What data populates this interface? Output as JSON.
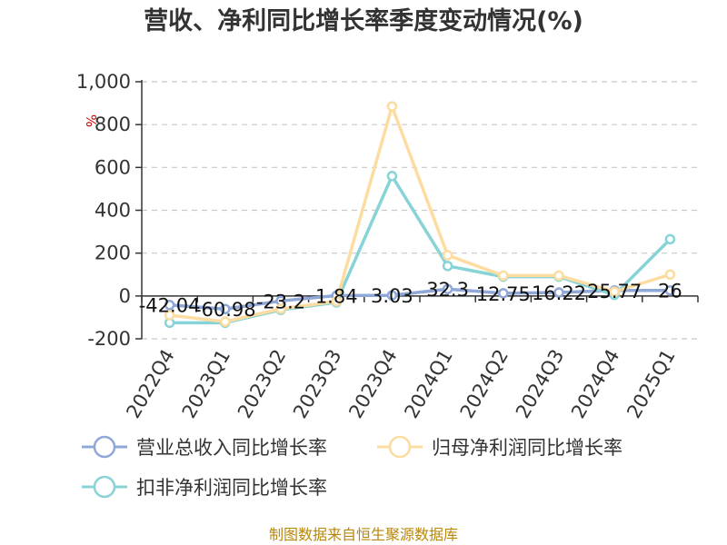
{
  "chart_data": {
    "type": "line",
    "title": "营收、净利同比增长率季度变动情况(%)",
    "ylabel": "%",
    "categories": [
      "2022Q4",
      "2023Q1",
      "2023Q2",
      "2023Q3",
      "2023Q4",
      "2024Q1",
      "2024Q2",
      "2024Q3",
      "2024Q4",
      "2025Q1"
    ],
    "ylim": [
      -200,
      1000
    ],
    "yticks": [
      -200,
      0,
      200,
      400,
      600,
      800,
      1000
    ],
    "ytick_labels": [
      "-200",
      "0",
      "200",
      "400",
      "600",
      "800",
      "1,000"
    ],
    "grid": true,
    "legend_position": "bottom",
    "series": [
      {
        "name": "营业总收入同比增长率",
        "color": "#8fa8d8",
        "values": [
          -42.04,
          -60.98,
          -23.2,
          1.84,
          3.03,
          32.3,
          12.75,
          16.22,
          25.77,
          26
        ],
        "labels": [
          "-42.04",
          "-60.98",
          "-23.2",
          "1.84",
          "3.03",
          "32.3",
          "12.75",
          "16.22",
          "25.77",
          "26"
        ]
      },
      {
        "name": "归母净利润同比增长率",
        "color": "#fcdca0",
        "values": [
          -90,
          -120,
          -60,
          -25,
          885,
          190,
          95,
          95,
          20,
          100
        ]
      },
      {
        "name": "扣非净利润同比增长率",
        "color": "#87d3d6",
        "values": [
          -125,
          -125,
          -65,
          -30,
          560,
          140,
          90,
          90,
          5,
          265
        ]
      }
    ]
  },
  "source": "制图数据来自恒生聚源数据库"
}
